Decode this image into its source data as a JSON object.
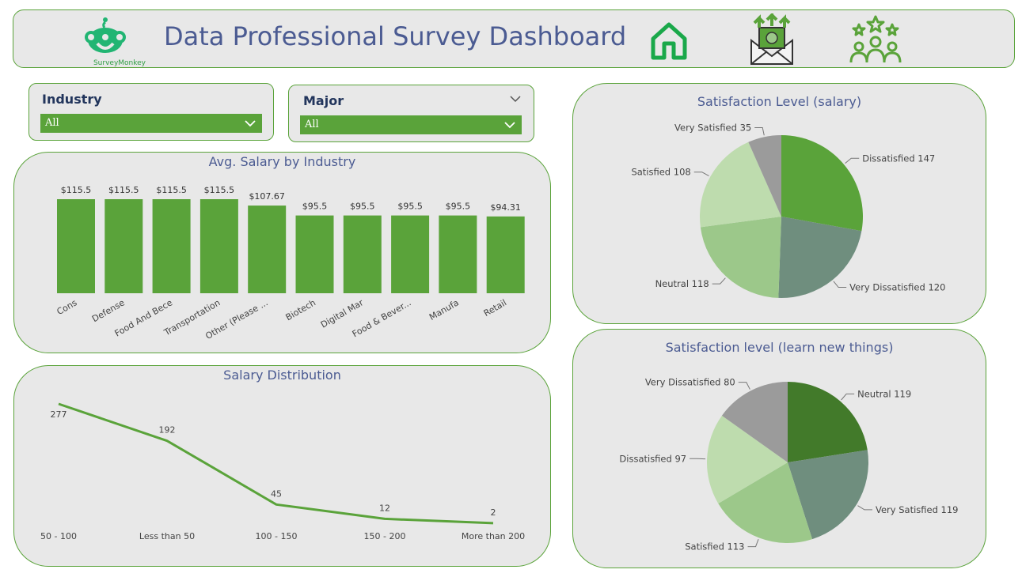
{
  "header": {
    "title": "Data Professional Survey Dashboard",
    "logo_text": "SurveyMonkey",
    "icons": [
      "home-icon",
      "money-envelope-icon",
      "people-stars-icon"
    ]
  },
  "slicers": {
    "industry": {
      "label": "Industry",
      "value": "All"
    },
    "major": {
      "label": "Major",
      "value": "All"
    }
  },
  "colors": {
    "accent": "#5aa33a",
    "title": "#4b5b92",
    "card_bg": "#e8e8e8"
  },
  "chart_data": [
    {
      "type": "bar",
      "title": "Avg. Salary by Industry",
      "categories": [
        "Cons",
        "Defense",
        "Food And Bece",
        "Transportation",
        "Other (Please ...",
        "Biotech",
        "Digital Mar",
        "Food & Bever...",
        "Manufa",
        "Retail"
      ],
      "values": [
        115.5,
        115.5,
        115.5,
        115.5,
        107.67,
        95.5,
        95.5,
        95.5,
        95.5,
        94.31
      ],
      "labels": [
        "$115.5",
        "$115.5",
        "$115.5",
        "$115.5",
        "$107.67",
        "$95.5",
        "$95.5",
        "$95.5",
        "$95.5",
        "$94.31"
      ],
      "ylim": [
        0,
        115.5
      ],
      "color": "#5aa33a"
    },
    {
      "type": "line",
      "title": "Salary Distribution",
      "categories": [
        "50 - 100",
        "Less than 50",
        "100 - 150",
        "150 - 200",
        "More than 200"
      ],
      "values": [
        277,
        192,
        45,
        12,
        2
      ],
      "color": "#5aa33a"
    },
    {
      "type": "pie",
      "title": "Satisfaction Level (salary)",
      "slices": [
        {
          "label": "Dissatisfied",
          "value": 147,
          "color": "#5aa33a"
        },
        {
          "label": "Very Dissatisfied",
          "value": 120,
          "color": "#6f8e7e"
        },
        {
          "label": "Neutral",
          "value": 118,
          "color": "#9cc88a"
        },
        {
          "label": "Satisfied",
          "value": 108,
          "color": "#bedcae"
        },
        {
          "label": "Very Satisfied",
          "value": 35,
          "color": "#9b9b9b"
        }
      ]
    },
    {
      "type": "pie",
      "title": "Satisfaction level (learn new things)",
      "slices": [
        {
          "label": "Neutral",
          "value": 119,
          "color": "#427a2a"
        },
        {
          "label": "Very Satisfied",
          "value": 119,
          "color": "#6f8e7e"
        },
        {
          "label": "Satisfied",
          "value": 113,
          "color": "#9cc88a"
        },
        {
          "label": "Dissatisfied",
          "value": 97,
          "color": "#bedcae"
        },
        {
          "label": "Very Dissatisfied",
          "value": 80,
          "color": "#9b9b9b"
        }
      ]
    }
  ]
}
